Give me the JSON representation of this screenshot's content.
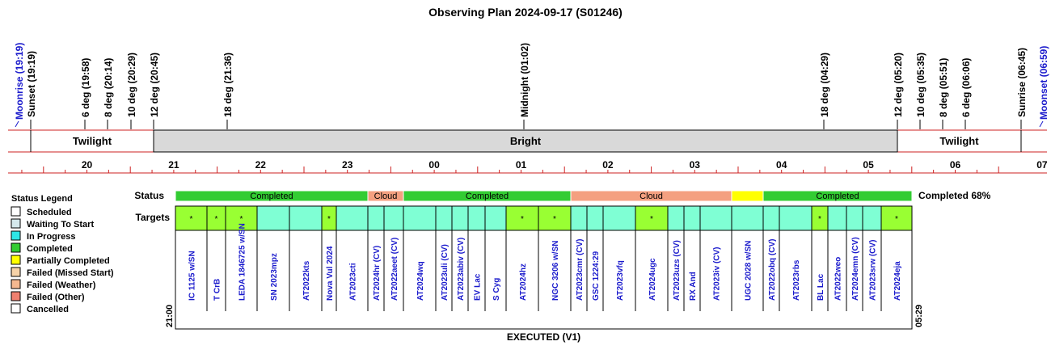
{
  "title": "Observing Plan 2024-09-17 (S01246)",
  "time_marks": [
    {
      "label": "Moonrise (19:19)",
      "kind": "moon"
    },
    {
      "label": "Sunset (19:19)",
      "kind": "sun"
    },
    {
      "label": "6 deg (19:58)",
      "kind": "sun"
    },
    {
      "label": "8 deg (20:14)",
      "kind": "sun"
    },
    {
      "label": "10 deg (20:29)",
      "kind": "sun"
    },
    {
      "label": "12 deg (20:45)",
      "kind": "sun"
    },
    {
      "label": "18 deg (21:36)",
      "kind": "sun"
    },
    {
      "label": "Midnight (01:02)",
      "kind": "sun"
    },
    {
      "label": "18 deg (04:29)",
      "kind": "sun"
    },
    {
      "label": "12 deg (05:20)",
      "kind": "sun"
    },
    {
      "label": "10 deg (05:35)",
      "kind": "sun"
    },
    {
      "label": "8 deg (05:51)",
      "kind": "sun"
    },
    {
      "label": "6 deg (06:06)",
      "kind": "sun"
    },
    {
      "label": "Sunrise (06:45)",
      "kind": "sun"
    },
    {
      "label": "Moonset (06:59)",
      "kind": "moon"
    }
  ],
  "bands": [
    {
      "label": "Twilight",
      "shaded": false
    },
    {
      "label": "Bright",
      "shaded": true
    },
    {
      "label": "Twilight",
      "shaded": false
    }
  ],
  "hours": [
    "20",
    "21",
    "22",
    "23",
    "00",
    "01",
    "02",
    "03",
    "04",
    "05",
    "06",
    "07"
  ],
  "status_legend": {
    "title": "Status Legend",
    "items": [
      {
        "label": "Scheduled",
        "color": "#ffffff"
      },
      {
        "label": "Waiting To Start",
        "color": "#d4e8ec"
      },
      {
        "label": "In Progress",
        "color": "#2ee6e6"
      },
      {
        "label": "Completed",
        "color": "#33cc33"
      },
      {
        "label": "Partially Completed",
        "color": "#ffff00"
      },
      {
        "label": "Failed (Missed Start)",
        "color": "#f6d2a8"
      },
      {
        "label": "Failed (Weather)",
        "color": "#f4b890"
      },
      {
        "label": "Failed (Other)",
        "color": "#f08070"
      },
      {
        "label": "Cancelled",
        "color": "#ffffff"
      }
    ]
  },
  "status_row_label": "Status",
  "targets_row_label": "Targets",
  "status_segments": [
    {
      "label": "Completed",
      "color": "#33cc33"
    },
    {
      "label": "Cloud",
      "color": "#f4a080"
    },
    {
      "label": "Completed",
      "color": "#33cc33"
    },
    {
      "label": "Cloud",
      "color": "#f4a080"
    },
    {
      "label": "",
      "color": "#ffff00"
    },
    {
      "label": "Completed",
      "color": "#33cc33"
    }
  ],
  "completed_summary": "Completed 68%",
  "targets": [
    {
      "name": "IC 1125 w/SN",
      "mark": "*",
      "color": "#99ff33"
    },
    {
      "name": "T CrB",
      "mark": "*",
      "color": "#99ff33"
    },
    {
      "name": "LEDA 1846725 w/SN",
      "mark": "*",
      "color": "#99ff33"
    },
    {
      "name": "SN 2023mpz",
      "mark": "",
      "color": "#7fffd4"
    },
    {
      "name": "AT2022kts",
      "mark": "",
      "color": "#7fffd4"
    },
    {
      "name": "Nova Vul 2024",
      "mark": "*",
      "color": "#99ff33"
    },
    {
      "name": "AT2023cti",
      "mark": "",
      "color": "#7fffd4"
    },
    {
      "name": "AT2024hr (CV)",
      "mark": "",
      "color": "#7fffd4"
    },
    {
      "name": "AT2022aeet (CV)",
      "mark": "",
      "color": "#7fffd4"
    },
    {
      "name": "AT2024wq",
      "mark": "",
      "color": "#7fffd4"
    },
    {
      "name": "AT2023uli (CV)",
      "mark": "",
      "color": "#7fffd4"
    },
    {
      "name": "AT2023abiv (CV)",
      "mark": "",
      "color": "#7fffd4"
    },
    {
      "name": "EV Lac",
      "mark": "",
      "color": "#7fffd4"
    },
    {
      "name": "S Cyg",
      "mark": "",
      "color": "#7fffd4"
    },
    {
      "name": "AT2024hz",
      "mark": "*",
      "color": "#99ff33"
    },
    {
      "name": "NGC 3206 w/SN",
      "mark": "*",
      "color": "#99ff33"
    },
    {
      "name": "AT2023cmr (CV)",
      "mark": "",
      "color": "#7fffd4"
    },
    {
      "name": "GSC 1224:29",
      "mark": "",
      "color": "#7fffd4"
    },
    {
      "name": "AT2023vfq",
      "mark": "",
      "color": "#7fffd4"
    },
    {
      "name": "AT2024ugc",
      "mark": "*",
      "color": "#99ff33"
    },
    {
      "name": "AT2023uzs (CV)",
      "mark": "",
      "color": "#7fffd4"
    },
    {
      "name": "RX And",
      "mark": "",
      "color": "#7fffd4"
    },
    {
      "name": "AT2023iv (CV)",
      "mark": "",
      "color": "#7fffd4"
    },
    {
      "name": "UGC 2028 w/SN",
      "mark": "",
      "color": "#7fffd4"
    },
    {
      "name": "AT2022obq (CV)",
      "mark": "",
      "color": "#7fffd4"
    },
    {
      "name": "AT2023rbs",
      "mark": "",
      "color": "#7fffd4"
    },
    {
      "name": "BL Lac",
      "mark": "*",
      "color": "#99ff33"
    },
    {
      "name": "AT2022weo",
      "mark": "",
      "color": "#7fffd4"
    },
    {
      "name": "AT2024emn (CV)",
      "mark": "",
      "color": "#7fffd4"
    },
    {
      "name": "AT2023srw (CV)",
      "mark": "",
      "color": "#7fffd4"
    },
    {
      "name": "AT2024eja",
      "mark": "*",
      "color": "#99ff33"
    }
  ],
  "start_time": "21:00",
  "end_time": "05:29",
  "footer_label": "EXECUTED (V1)"
}
